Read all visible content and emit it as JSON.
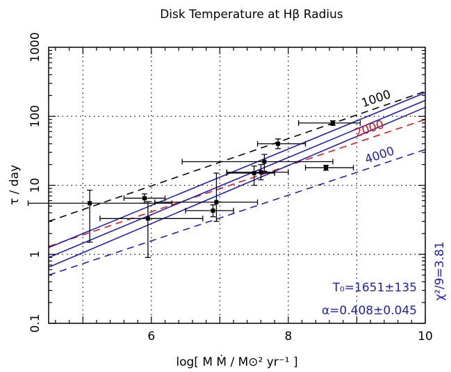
{
  "chart_data": {
    "type": "scatter",
    "title": "Disk Temperature at Hβ Radius",
    "xlabel": "log[ M Ṁ / M⊙² yr⁻¹ ]",
    "ylabel": "τ / day",
    "xlim": [
      4.5,
      10
    ],
    "ylim": [
      0.1,
      1000
    ],
    "yscale": "log",
    "x_ticks": [
      6,
      8,
      10
    ],
    "y_ticks": [
      0.1,
      1,
      10,
      100,
      1000
    ],
    "y_tick_labels": [
      "0.1",
      "1",
      "10",
      "100",
      "1000"
    ],
    "grid": true,
    "points": [
      {
        "x": 5.1,
        "y": 5.5,
        "xerr": [
          0.9,
          1.2
        ],
        "yerr": [
          1.5,
          8.5
        ]
      },
      {
        "x": 5.9,
        "y": 6.5,
        "xerr": [
          0.3,
          0.3
        ],
        "yerr": [
          5.5,
          7.5
        ]
      },
      {
        "x": 5.95,
        "y": 3.3,
        "xerr": [
          0.7,
          0.8
        ],
        "yerr": [
          0.9,
          5.8
        ]
      },
      {
        "x": 6.9,
        "y": 4.3,
        "xerr": [
          0.4,
          0.3
        ],
        "yerr": [
          3.5,
          5.2
        ]
      },
      {
        "x": 6.95,
        "y": 5.7,
        "xerr": [
          0.9,
          0.6
        ],
        "yerr": [
          3.0,
          15.0
        ]
      },
      {
        "x": 7.5,
        "y": 15,
        "xerr": [
          0.4,
          0.3
        ],
        "yerr": [
          10,
          19
        ]
      },
      {
        "x": 7.6,
        "y": 15.5,
        "xerr": [
          0.5,
          0.4
        ],
        "yerr": [
          12,
          20
        ]
      },
      {
        "x": 7.65,
        "y": 22,
        "xerr": [
          1.2,
          1.0
        ],
        "yerr": [
          16,
          28
        ]
      },
      {
        "x": 7.85,
        "y": 40,
        "xerr": [
          0.3,
          0.4
        ],
        "yerr": [
          34,
          47
        ]
      },
      {
        "x": 8.55,
        "y": 18,
        "xerr": [
          0.3,
          0.4
        ],
        "yerr": [
          16.5,
          19.5
        ]
      },
      {
        "x": 8.65,
        "y": 80,
        "xerr": [
          0.5,
          0.4
        ],
        "yerr": [
          74,
          86
        ]
      }
    ],
    "model_lines": [
      {
        "label": "1000",
        "color": "#000000",
        "dash": true,
        "y_at_xmin": 3.0,
        "y_at_xmax": 230,
        "label_x": 9.3
      },
      {
        "label": "2000",
        "color": "#ee1111",
        "dash": true,
        "y_at_xmin": 1.3,
        "y_at_xmax": 90,
        "label_x": 9.2
      },
      {
        "label": "4000",
        "color": "#1c1ccc",
        "dash": true,
        "y_at_xmin": 0.5,
        "y_at_xmax": 33,
        "label_x": 9.35
      }
    ],
    "fit_lines": [
      {
        "color": "#1c1ccc",
        "y_at_xmin": 1.25,
        "y_at_xmax": 220
      },
      {
        "color": "#1c1ccc",
        "y_at_xmin": 0.9,
        "y_at_xmax": 170
      },
      {
        "color": "#1c1ccc",
        "y_at_xmin": 0.65,
        "y_at_xmax": 135
      }
    ],
    "annotations": {
      "t0": "T₀=1651±135",
      "alpha": "α=0.408±0.045",
      "chi2": "χ²/9=3.81"
    },
    "colors": {
      "fit": "#1c1ccc",
      "model_2000": "#ee1111",
      "axis": "#000000"
    }
  }
}
